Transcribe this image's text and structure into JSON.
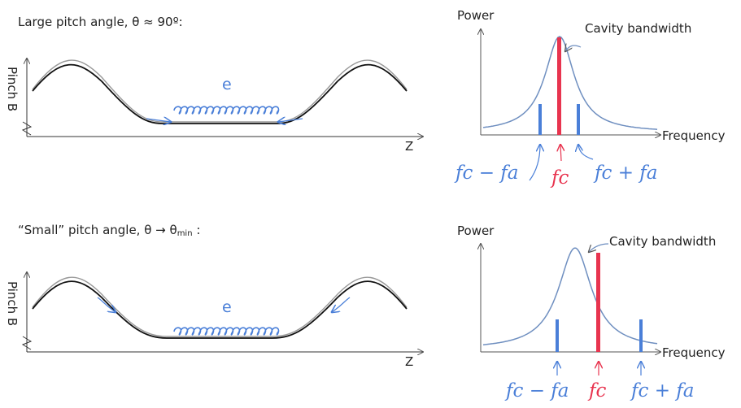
{
  "panels": [
    {
      "caption": "Large pitch angle, θ ≈ 90º:",
      "trap_ylabel": "Pinch B",
      "trap_xlabel": "Z",
      "electron": "e",
      "spectrum_ylabel": "Power",
      "spectrum_xlabel": "Frequency",
      "bandwidth_label": "Cavity bandwidth",
      "sideband_low": "fc − fa",
      "carrier": "fc",
      "sideband_high": "fc + fa"
    },
    {
      "caption": "“Small” pitch angle, θ → θ",
      "caption_sub": "min",
      "caption_end": " :",
      "trap_ylabel": "Pinch B",
      "trap_xlabel": "Z",
      "electron": "e",
      "spectrum_ylabel": "Power",
      "spectrum_xlabel": "Frequency",
      "bandwidth_label": "Cavity bandwidth",
      "sideband_low": "fc − fa",
      "carrier": "fc",
      "sideband_high": "fc + fa"
    }
  ],
  "colors": {
    "blue": "#4a7fd8",
    "red": "#e8344f",
    "curve": "#6f8fc0"
  }
}
